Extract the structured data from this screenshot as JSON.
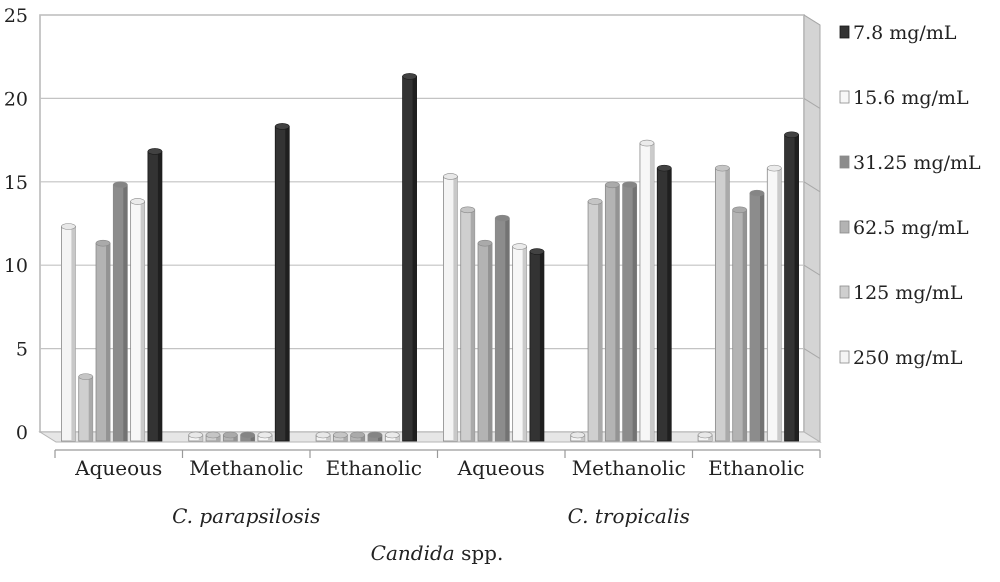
{
  "chart_data": {
    "type": "bar",
    "title": "",
    "ylim": [
      0,
      25
    ],
    "yticks": [
      0,
      5,
      10,
      15,
      20,
      25
    ],
    "grid": true,
    "legend_position": "right",
    "categories": [
      "Aqueous",
      "Methanolic",
      "Ethanolic",
      "Aqueous",
      "Methanolic",
      "Ethanolic"
    ],
    "groups": [
      {
        "label": "C. parapsilosis",
        "span": [
          0,
          2
        ]
      },
      {
        "label": "C. tropicalis",
        "span": [
          3,
          5
        ]
      }
    ],
    "xlabel_italic": "Candida",
    "xlabel_rest": " spp.",
    "series": [
      {
        "name": "250 mg/mL",
        "color": "#f4f4f4",
        "values": [
          12.5,
          0,
          0,
          15.5,
          0,
          0
        ]
      },
      {
        "name": "125 mg/mL",
        "color": "#cfcfcf",
        "values": [
          3.5,
          0,
          0,
          13.5,
          14,
          16
        ]
      },
      {
        "name": "62.5 mg/mL",
        "color": "#b3b3b3",
        "values": [
          11.5,
          0,
          0,
          11.5,
          15,
          13.5
        ]
      },
      {
        "name": "31.25 mg/mL",
        "color": "#8c8c8c",
        "values": [
          15,
          0,
          0,
          13,
          15,
          14.5
        ]
      },
      {
        "name": "15.6 mg/mL",
        "color": "#f7f7f7",
        "values": [
          14,
          0,
          0,
          11.3,
          17.5,
          16
        ]
      },
      {
        "name": "7.8 mg/mL",
        "color": "#333333",
        "values": [
          17,
          18.5,
          21.5,
          11,
          16,
          18
        ]
      }
    ],
    "legend_order": [
      5,
      4,
      3,
      2,
      1,
      0
    ]
  }
}
